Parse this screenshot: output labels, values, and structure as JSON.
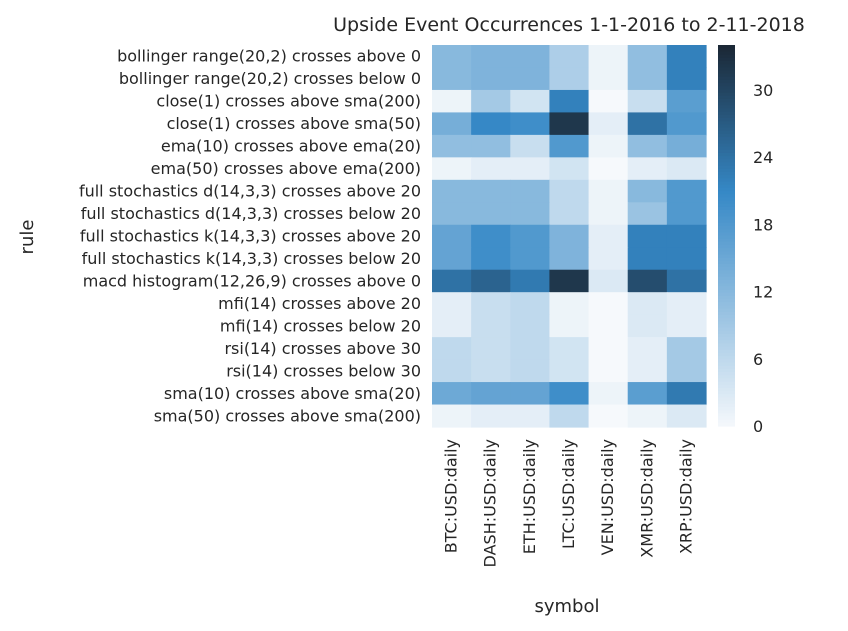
{
  "chart_data": {
    "type": "heatmap",
    "title": "Upside Event Occurrences 1-1-2016 to 2-11-2018",
    "xlabel": "symbol",
    "ylabel": "rule",
    "x_categories": [
      "BTC:USD:daily",
      "DASH:USD:daily",
      "ETH:USD:daily",
      "LTC:USD:daily",
      "VEN:USD:daily",
      "XMR:USD:daily",
      "XRP:USD:daily"
    ],
    "y_categories": [
      "bollinger range(20,2) crosses above 0",
      "bollinger range(20,2) crosses below 0",
      "close(1) crosses above sma(200)",
      "close(1) crosses above sma(50)",
      "ema(10) crosses above ema(20)",
      "ema(50) crosses above ema(200)",
      "full stochastics d(14,3,3) crosses above 20",
      "full stochastics d(14,3,3) crosses below 20",
      "full stochastics k(14,3,3) crosses above 20",
      "full stochastics k(14,3,3) crosses below 20",
      "macd histogram(12,26,9) crosses above 0",
      "mfi(14) crosses above 20",
      "mfi(14) crosses below 20",
      "rsi(14) crosses above 30",
      "rsi(14) crosses below 30",
      "sma(10) crosses above sma(20)",
      "sma(50) crosses above sma(200)"
    ],
    "values": [
      [
        12,
        13,
        13,
        8,
        1,
        11,
        22
      ],
      [
        12,
        13,
        13,
        8,
        1,
        11,
        22
      ],
      [
        1,
        9,
        4,
        22,
        0,
        5,
        17
      ],
      [
        14,
        21,
        20,
        32,
        2,
        24,
        18
      ],
      [
        11,
        11,
        5,
        18,
        1,
        11,
        14
      ],
      [
        1,
        2,
        2,
        4,
        0,
        2,
        3
      ],
      [
        12,
        12,
        12,
        6,
        1,
        12,
        18
      ],
      [
        12,
        12,
        12,
        6,
        1,
        10,
        18
      ],
      [
        16,
        20,
        18,
        13,
        2,
        22,
        22
      ],
      [
        16,
        20,
        18,
        13,
        2,
        22,
        22
      ],
      [
        24,
        26,
        23,
        32,
        3,
        29,
        24
      ],
      [
        2,
        5,
        6,
        1,
        0,
        3,
        2
      ],
      [
        2,
        5,
        6,
        1,
        0,
        3,
        2
      ],
      [
        6,
        5,
        6,
        4,
        0,
        2,
        9
      ],
      [
        6,
        5,
        6,
        4,
        0,
        2,
        9
      ],
      [
        15,
        16,
        16,
        20,
        1,
        17,
        23
      ],
      [
        1,
        2,
        2,
        6,
        0,
        1,
        3
      ]
    ],
    "colorbar": {
      "min": 0,
      "max": 34,
      "ticks": [
        0,
        6,
        12,
        18,
        24,
        30
      ]
    },
    "colors": {
      "low": "#f6f9fc",
      "mid": "#3588c6",
      "high": "#1b2836"
    },
    "grid": false
  }
}
